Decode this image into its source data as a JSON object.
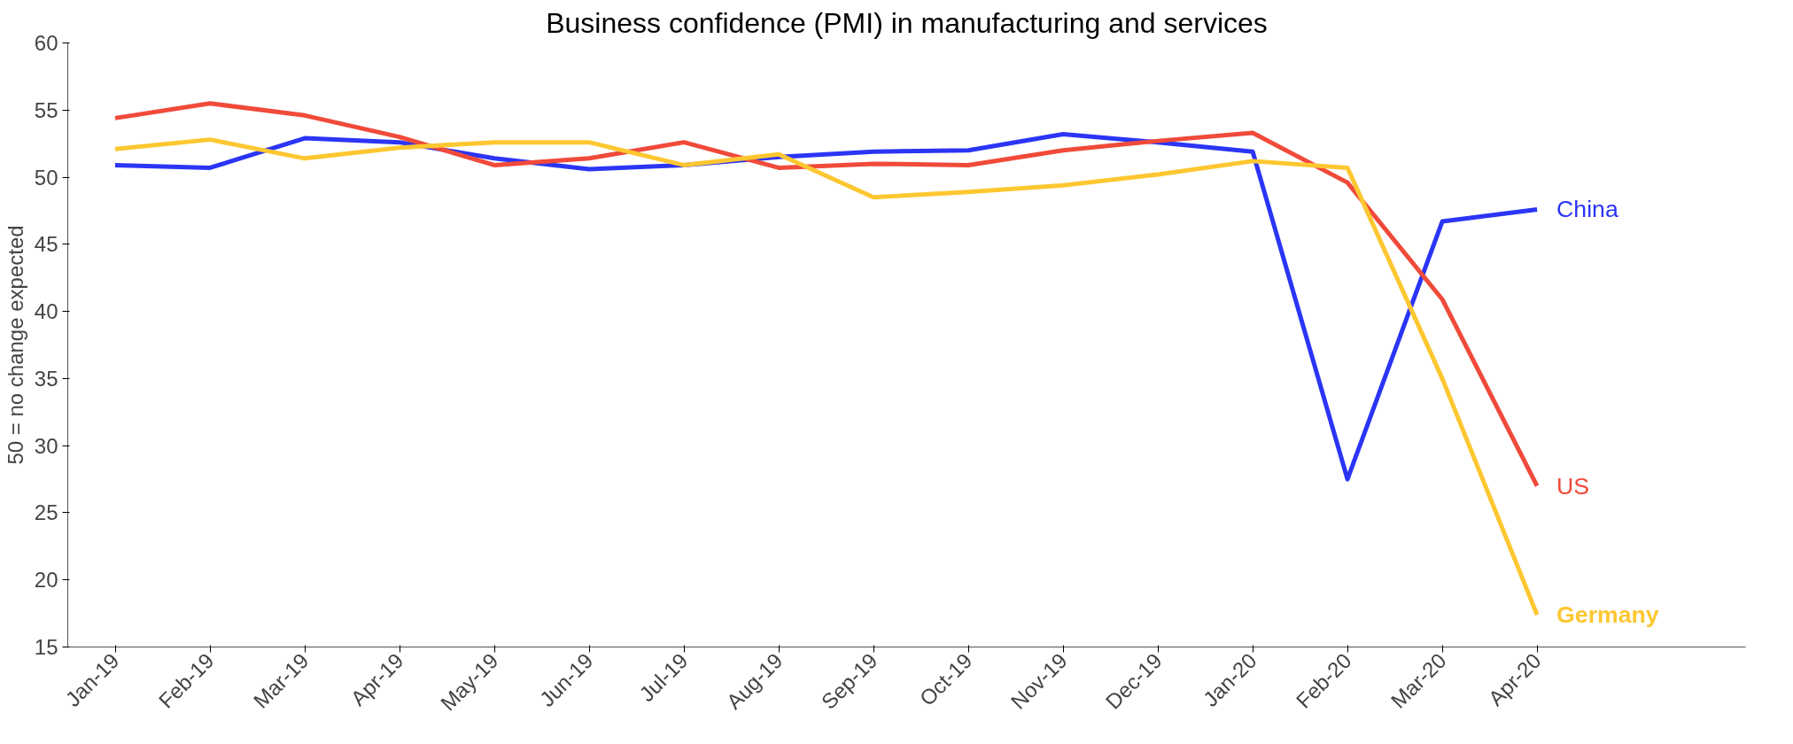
{
  "chart_data": {
    "type": "line",
    "title": "Business confidence (PMI) in manufacturing and services",
    "ylabel": "50 = no change expected",
    "categories": [
      "Jan-19",
      "Feb-19",
      "Mar-19",
      "Apr-19",
      "May-19",
      "Jun-19",
      "Jul-19",
      "Aug-19",
      "Sep-19",
      "Oct-19",
      "Nov-19",
      "Dec-19",
      "Jan-20",
      "Feb-20",
      "Mar-20",
      "Apr-20"
    ],
    "series": [
      {
        "name": "China",
        "color": "#2b35f5",
        "values": [
          50.9,
          50.7,
          52.9,
          52.6,
          51.4,
          50.6,
          50.9,
          51.5,
          51.9,
          52.0,
          53.2,
          52.6,
          51.9,
          27.5,
          46.7,
          47.6
        ]
      },
      {
        "name": "US",
        "color": "#f04a3a",
        "values": [
          54.4,
          55.5,
          54.6,
          53.0,
          50.9,
          51.4,
          52.6,
          50.7,
          51.0,
          50.9,
          52.0,
          52.7,
          53.3,
          49.6,
          40.9,
          27.0
        ]
      },
      {
        "name": "Germany",
        "color": "#fdc731",
        "values": [
          52.1,
          52.8,
          51.4,
          52.2,
          52.6,
          52.6,
          50.9,
          51.7,
          48.5,
          48.9,
          49.4,
          50.2,
          51.2,
          50.7,
          35.0,
          17.4
        ]
      }
    ],
    "ylim": [
      15,
      60
    ],
    "yticks": [
      15,
      20,
      25,
      30,
      35,
      40,
      45,
      50,
      55,
      60
    ],
    "grid": false,
    "legend": "right",
    "marker": "none",
    "line_style": "solid"
  }
}
